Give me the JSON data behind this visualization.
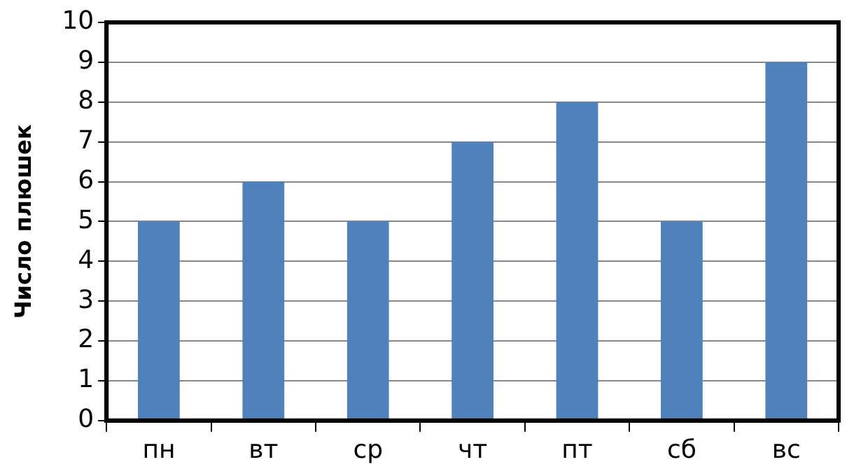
{
  "chart_data": {
    "type": "bar",
    "ylabel": "Число плюшек",
    "categories": [
      "пн",
      "вт",
      "ср",
      "чт",
      "пт",
      "сб",
      "вс"
    ],
    "values": [
      5,
      6,
      5,
      7,
      8,
      5,
      9
    ],
    "color": "#4f81bd",
    "ylim": [
      0,
      10
    ],
    "yticks": [
      0,
      1,
      2,
      3,
      4,
      5,
      6,
      7,
      8,
      9,
      10
    ],
    "grid": "y",
    "legend": false
  }
}
